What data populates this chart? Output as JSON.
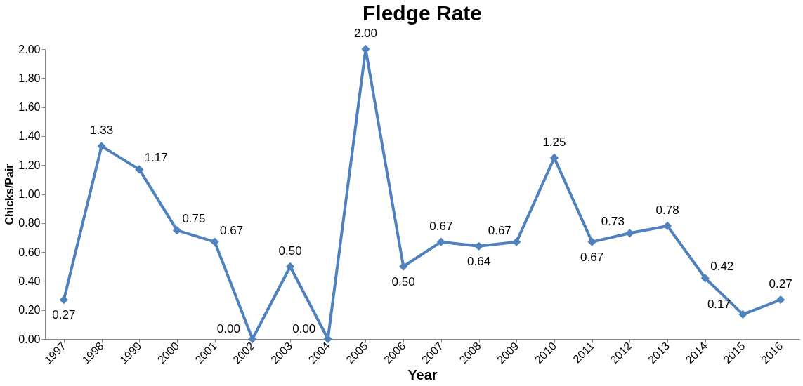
{
  "chart_data": {
    "type": "line",
    "title": "Fledge Rate",
    "xlabel": "Year",
    "ylabel": "Chicks/Pair",
    "categories": [
      "1997",
      "1998",
      "1999",
      "2000",
      "2001",
      "2002",
      "2003",
      "2004",
      "2005",
      "2006",
      "2007",
      "2008",
      "2009",
      "2010",
      "2011",
      "2012",
      "2013",
      "2014",
      "2015",
      "2016"
    ],
    "series": [
      {
        "color": "#4f81bd",
        "values": [
          0.27,
          1.33,
          1.17,
          0.75,
          0.67,
          0,
          0.5,
          0,
          2,
          0.5,
          0.67,
          0.64,
          0.67,
          1.25,
          0.67,
          0.73,
          0.78,
          0.42,
          0.17,
          0.27
        ],
        "value_labels": [
          "0.27",
          "1.33",
          "1.17",
          "0.75",
          "0.67",
          "0.00",
          "0.50",
          "0.00",
          "2.00",
          "0.50",
          "0.67",
          "0.64",
          "0.67",
          "1.25",
          "0.67",
          "0.73",
          "0.78",
          "0.42",
          "0.17",
          "0.27"
        ]
      }
    ],
    "ylim": [
      0,
      2
    ],
    "yticks": [
      {
        "value": 0,
        "label": "0.00"
      },
      {
        "value": 0.2,
        "label": "0.20"
      },
      {
        "value": 0.4,
        "label": "0.40"
      },
      {
        "value": 0.6,
        "label": "0.60"
      },
      {
        "value": 0.8,
        "label": "0.80"
      },
      {
        "value": 1,
        "label": "1.00"
      },
      {
        "value": 1.2,
        "label": "1.20"
      },
      {
        "value": 1.4,
        "label": "1.40"
      },
      {
        "value": 1.6,
        "label": "1.60"
      },
      {
        "value": 1.8,
        "label": "1.80"
      },
      {
        "value": 2,
        "label": "2.00"
      }
    ],
    "marker": "diamond",
    "line_style": "solid",
    "grid": false
  }
}
